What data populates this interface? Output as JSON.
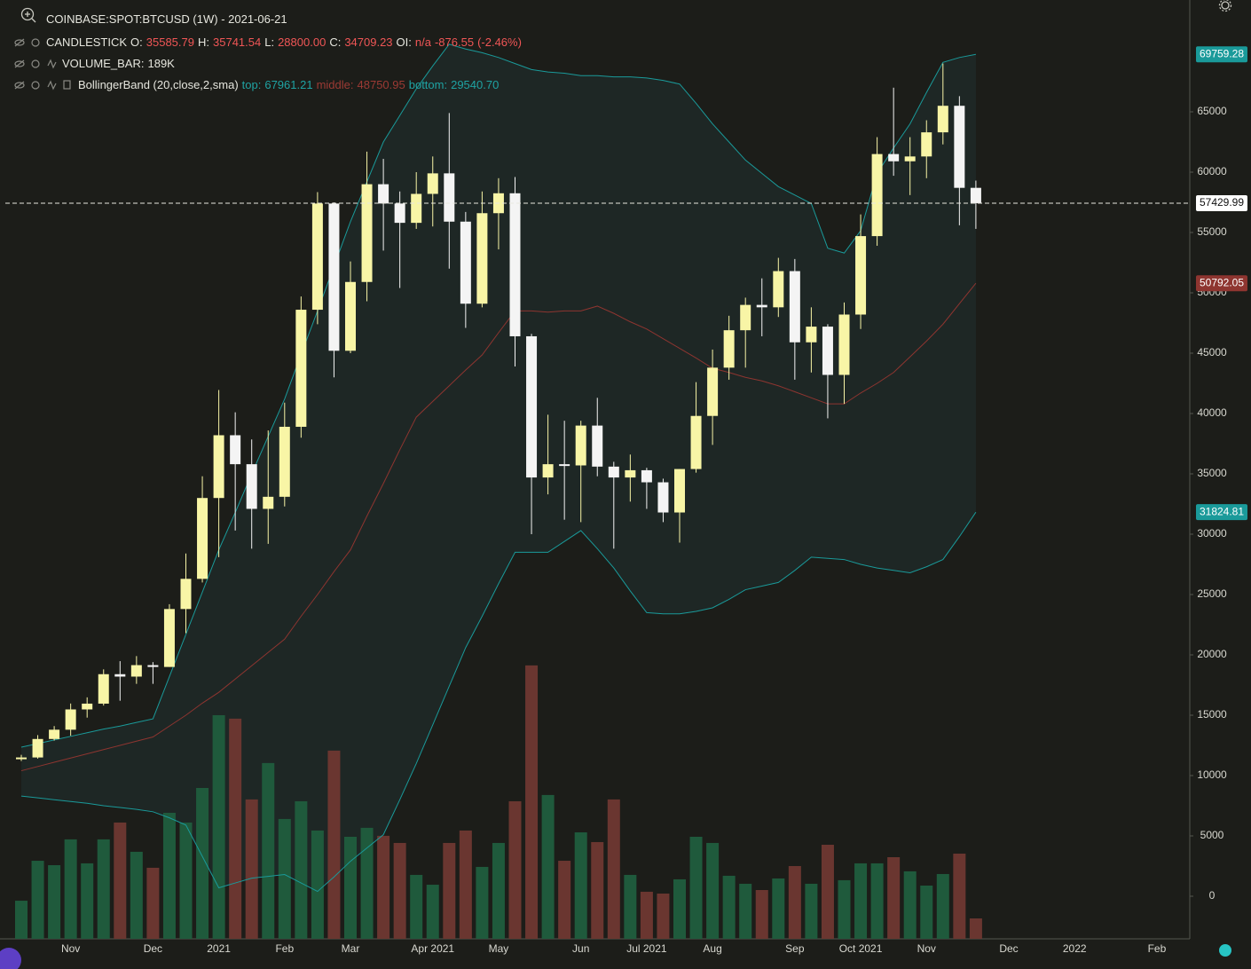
{
  "chart_data": {
    "type": "candlestick",
    "title": "COINBASE:SPOT:BTCUSD (1W) - 2021-06-21",
    "categories": [
      null,
      null,
      null,
      "Nov",
      null,
      null,
      null,
      null,
      "Dec",
      null,
      null,
      null,
      "2021",
      null,
      null,
      null,
      "Feb",
      null,
      null,
      null,
      "Mar",
      null,
      null,
      null,
      null,
      "Apr 2021",
      null,
      null,
      null,
      "May",
      null,
      null,
      null,
      null,
      "Jun",
      null,
      null,
      null,
      "Jul 2021",
      null,
      null,
      null,
      "Aug",
      null,
      null,
      null,
      null,
      "Sep",
      null,
      null,
      null,
      "Oct 2021",
      null,
      null,
      null,
      "Nov",
      null,
      null,
      null,
      null,
      "Dec",
      null,
      null,
      null,
      "2022",
      null,
      null,
      null,
      null,
      "Feb",
      null
    ],
    "ylim": [
      -3529,
      74265
    ],
    "yticks": [
      0,
      5000,
      10000,
      15000,
      20000,
      25000,
      30000,
      35000,
      40000,
      45000,
      50000,
      55000,
      60000,
      65000
    ],
    "candles": {
      "name": "CANDLESTICK",
      "up_color": "#f8f5a6",
      "down_color": "#f4f4f4",
      "legend": [
        {
          "key": "O:",
          "value": "35585.79"
        },
        {
          "key": "H:",
          "value": "35741.54"
        },
        {
          "key": "L:",
          "value": "28800.00"
        },
        {
          "key": "C:",
          "value": "34709.23"
        },
        {
          "key": "OI:",
          "value": "n/a"
        },
        {
          "value": "-876.55"
        },
        {
          "value": "(-2.46%)"
        }
      ],
      "legend_value_color": "#f05656",
      "open": [
        11380,
        11500,
        13030,
        13800,
        15480,
        15960,
        18400,
        18200,
        19150,
        19000,
        23800,
        26300,
        33000,
        38200,
        35800,
        32100,
        33100,
        38900,
        48600,
        57400,
        45200,
        50900,
        59000,
        57400,
        55800,
        58200,
        59900,
        55900,
        49100,
        56600,
        58250,
        46400,
        34700,
        35800,
        35700,
        39000,
        35600,
        34700,
        35300,
        34300,
        31800,
        35400,
        39800,
        43800,
        46900,
        49000,
        48800,
        51800,
        45900,
        47200,
        43200,
        48200,
        54700,
        61500,
        60900,
        61300,
        63300,
        65500,
        58700,
        null,
        null,
        null,
        null,
        null,
        null,
        null,
        null,
        null,
        null,
        null,
        null
      ],
      "high": [
        11720,
        13350,
        14100,
        15970,
        16480,
        18800,
        19480,
        19900,
        19400,
        24200,
        28400,
        34800,
        41950,
        40100,
        37850,
        38600,
        40900,
        49700,
        58350,
        57500,
        52600,
        61700,
        61100,
        58400,
        60000,
        61300,
        64900,
        56700,
        58400,
        59500,
        59600,
        46600,
        39900,
        39400,
        39400,
        41300,
        36000,
        36600,
        35500,
        34600,
        35400,
        42600,
        45300,
        48100,
        49600,
        51200,
        52900,
        52800,
        48800,
        47400,
        49200,
        56500,
        62900,
        67000,
        62900,
        64300,
        69000,
        66300,
        59300,
        null,
        null,
        null,
        null,
        null,
        null,
        null,
        null,
        null,
        null,
        null,
        null
      ],
      "low": [
        11200,
        11400,
        12900,
        13300,
        14800,
        15800,
        16200,
        17600,
        17600,
        19000,
        21800,
        26000,
        28100,
        30300,
        28800,
        29200,
        32300,
        38000,
        47400,
        43000,
        45000,
        49300,
        53500,
        50400,
        55300,
        55500,
        52000,
        47100,
        48800,
        53600,
        43900,
        30000,
        33300,
        31200,
        31000,
        34800,
        28800,
        32700,
        32100,
        31000,
        29300,
        35100,
        37400,
        42800,
        43800,
        46400,
        48000,
        42800,
        43400,
        39600,
        40800,
        47000,
        53900,
        59700,
        58100,
        59500,
        62300,
        55600,
        55300,
        null,
        null,
        null,
        null,
        null,
        null,
        null,
        null,
        null,
        null,
        null,
        null
      ],
      "close": [
        11500,
        13030,
        13800,
        15480,
        15960,
        18400,
        18200,
        19150,
        19000,
        23800,
        26300,
        33000,
        38200,
        35800,
        32100,
        33100,
        38900,
        48600,
        57400,
        45200,
        50900,
        59000,
        57400,
        55800,
        58200,
        59900,
        55900,
        49100,
        56600,
        58250,
        46400,
        34700,
        35800,
        35700,
        39000,
        35600,
        34700,
        35300,
        34300,
        31800,
        35400,
        39800,
        43800,
        46900,
        49000,
        48800,
        51800,
        45900,
        47200,
        43200,
        48200,
        54700,
        61500,
        60900,
        61300,
        63300,
        65500,
        58700,
        57429.99,
        null,
        null,
        null,
        null,
        null,
        null,
        null,
        null,
        null,
        null,
        null,
        null
      ]
    },
    "volume": {
      "name": "VOLUME_BAR:",
      "label": "189K",
      "up_color": "#1f5a3c",
      "down_color": "#6a3630",
      "vlim": [
        0,
        8694
      ],
      "values": [
        353,
        723,
        682,
        921,
        699,
        921,
        1077,
        806,
        658,
        1167,
        1077,
        1397,
        2071,
        2039,
        1291,
        1628,
        1110,
        1274,
        1003,
        1743,
        945,
        1028,
        954,
        888,
        592,
        501,
        888,
        1003,
        666,
        888,
        1274,
        2532,
        1332,
        723,
        986,
        896,
        1291,
        592,
        436,
        419,
        551,
        945,
        888,
        584,
        510,
        452,
        559,
        674,
        510,
        871,
        543,
        699,
        699,
        756,
        625,
        493,
        600,
        789,
        189,
        null,
        null,
        null,
        null,
        null,
        null,
        null,
        null,
        null,
        null,
        null,
        null
      ]
    },
    "bollinger": {
      "name": "BollingerBand (20,close,2,sma)",
      "legend": [
        {
          "key": "top:",
          "value": "67961.21",
          "color": "#1fa3a3"
        },
        {
          "key": "middle:",
          "value": "48750.95",
          "color": "#9c3a34"
        },
        {
          "key": "bottom:",
          "value": "29540.70",
          "color": "#1fa3a3"
        }
      ],
      "top_color": "#1a9a9a",
      "middle_color": "#8e3530",
      "bottom_color": "#1a9a9a",
      "fill": "#1f2a28",
      "top": [
        12350,
        12650,
        12950,
        13250,
        13550,
        13850,
        14100,
        14400,
        14700,
        18200,
        21700,
        25200,
        28700,
        31800,
        35000,
        38100,
        41200,
        44900,
        48500,
        52200,
        55900,
        59200,
        62500,
        64700,
        66900,
        68800,
        70600,
        70200,
        69900,
        69500,
        69000,
        68500,
        68300,
        68200,
        68000,
        68000,
        67900,
        67900,
        67800,
        67600,
        67300,
        65700,
        64000,
        62500,
        61000,
        59900,
        58800,
        58100,
        57400,
        53700,
        53300,
        55150,
        59900,
        62000,
        64000,
        66600,
        69100,
        69500,
        69759.28,
        null,
        null,
        null,
        null,
        null,
        null,
        null,
        null,
        null,
        null,
        null,
        null
      ],
      "middle": [
        10400,
        10750,
        11100,
        11450,
        11800,
        12150,
        12500,
        12850,
        13200,
        14100,
        15000,
        16000,
        16900,
        18000,
        19100,
        20200,
        21300,
        23200,
        25000,
        26900,
        28700,
        31500,
        34200,
        37000,
        39700,
        41000,
        42300,
        43600,
        44850,
        46700,
        48500,
        48500,
        48400,
        48500,
        48500,
        48900,
        48300,
        47600,
        47000,
        46200,
        45400,
        44600,
        43750,
        43400,
        43000,
        42700,
        42300,
        41800,
        41300,
        40800,
        40800,
        41700,
        42500,
        43400,
        44700,
        46000,
        47400,
        49100,
        50792.05,
        null,
        null,
        null,
        null,
        null,
        null,
        null,
        null,
        null,
        null,
        null,
        null
      ],
      "bottom": [
        8300,
        8150,
        8000,
        7850,
        7700,
        7500,
        7350,
        7200,
        7000,
        6500,
        5900,
        3300,
        700,
        1100,
        1500,
        1650,
        1800,
        1100,
        400,
        1600,
        2900,
        4000,
        5100,
        8000,
        11000,
        14200,
        17400,
        20600,
        23200,
        25900,
        28500,
        28500,
        28500,
        29400,
        30300,
        28800,
        27200,
        25300,
        23500,
        23400,
        23400,
        23600,
        23900,
        24600,
        25400,
        25700,
        26000,
        27000,
        28100,
        28000,
        27900,
        27500,
        27200,
        27000,
        26800,
        27300,
        27900,
        29800,
        31824.81,
        null,
        null,
        null,
        null,
        null,
        null,
        null,
        null,
        null,
        null,
        null,
        null
      ]
    }
  }
}
